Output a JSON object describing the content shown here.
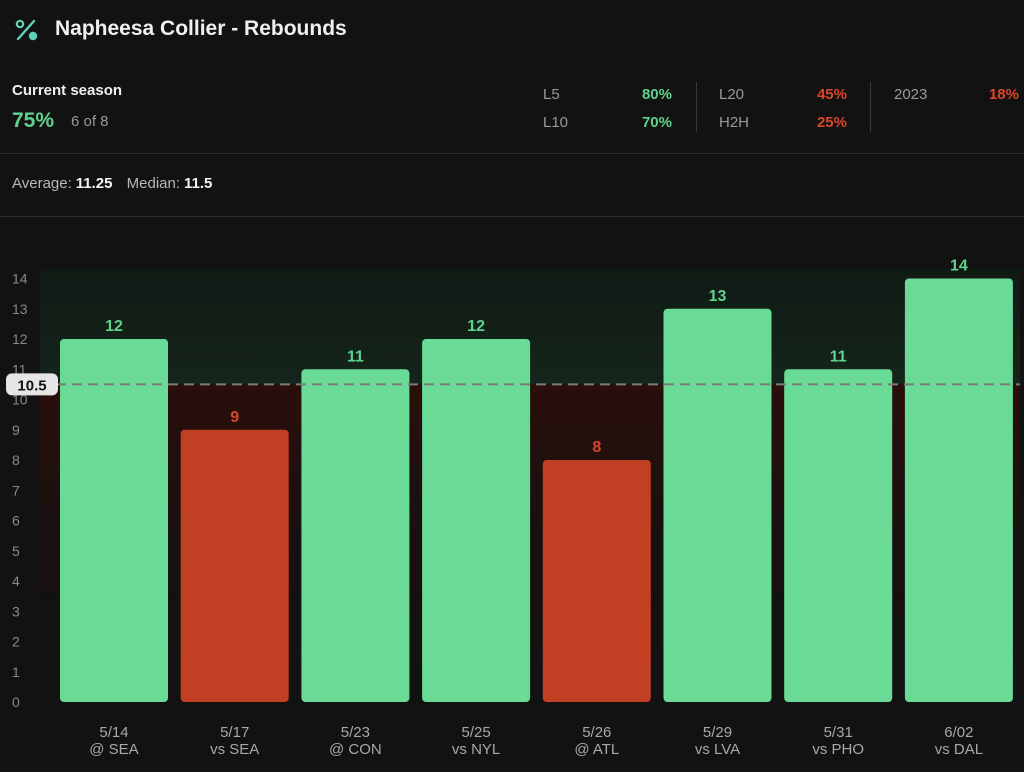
{
  "header": {
    "title": "Napheesa Collier - Rebounds",
    "icon": "percent-icon"
  },
  "season": {
    "label": "Current season",
    "pct": "75%",
    "count": "6 of 8"
  },
  "stats": [
    {
      "label": "L5",
      "value": "80%",
      "status": "good"
    },
    {
      "label": "L10",
      "value": "70%",
      "status": "good"
    },
    {
      "label": "L20",
      "value": "45%",
      "status": "bad"
    },
    {
      "label": "H2H",
      "value": "25%",
      "status": "bad"
    },
    {
      "label": "2023",
      "value": "18%",
      "status": "bad"
    }
  ],
  "summary": {
    "average_label": "Average:",
    "average_value": "11.25",
    "median_label": "Median:",
    "median_value": "11.5"
  },
  "colors": {
    "over": "#6adb96",
    "under": "#c13f23",
    "over_text": "#5fd38d",
    "under_text": "#d9462b",
    "background": "#121212"
  },
  "chart_data": {
    "type": "bar",
    "categories": [
      "5/14",
      "5/17",
      "5/23",
      "5/25",
      "5/26",
      "5/29",
      "5/31",
      "6/02"
    ],
    "opponents": [
      "@ SEA",
      "vs SEA",
      "@ CON",
      "vs NYL",
      "@ ATL",
      "vs LVA",
      "vs PHO",
      "vs DAL"
    ],
    "values": [
      12,
      9,
      11,
      12,
      8,
      13,
      11,
      14
    ],
    "line": 10.5,
    "line_label": "10.5",
    "ylim": [
      0,
      14
    ],
    "yticks": [
      0,
      1,
      2,
      3,
      4,
      5,
      6,
      7,
      8,
      9,
      10,
      11,
      12,
      13,
      14
    ],
    "grid": false,
    "title": "",
    "xlabel": "",
    "ylabel": ""
  }
}
